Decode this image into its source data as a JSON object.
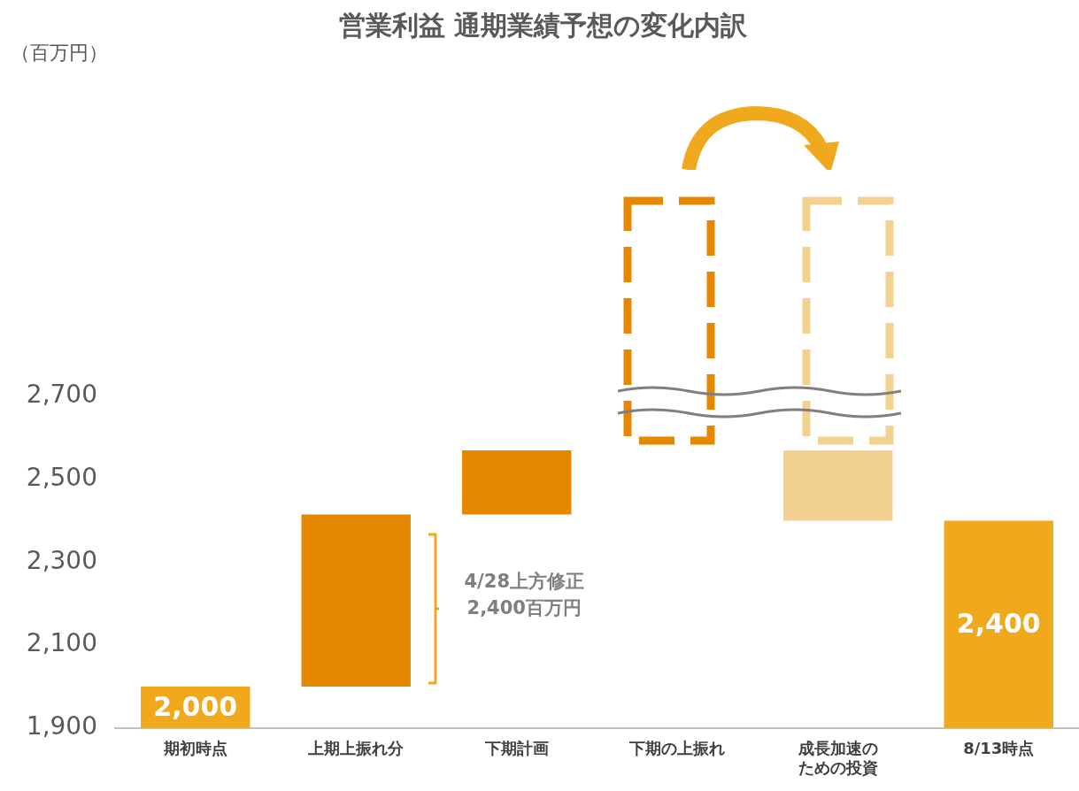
{
  "chart_data": {
    "type": "bar",
    "title": "営業利益 通期業績予想の変化内訳",
    "categories": [
      "期初時点",
      "上期上振れ分",
      "下期計画",
      "下期の上振れ",
      "成長加速のための投資",
      "8/13時点"
    ],
    "values": [
      2000,
      415,
      155,
      null,
      170,
      2400
    ],
    "base": [
      null,
      2000,
      2415,
      null,
      2400,
      null
    ],
    "colors": [
      "#f0a81c",
      "#e58800",
      "#e58800",
      "#e58800",
      "#f3d18f",
      "#f0a81c"
    ],
    "value_labels": [
      "2,000",
      null,
      null,
      null,
      null,
      "2,400"
    ],
    "ylim": [
      1900,
      2700
    ],
    "yticks": [
      {
        "value": 1900,
        "label": "1,900"
      },
      {
        "value": 2100,
        "label": "2,100"
      },
      {
        "value": 2300,
        "label": "2,300"
      },
      {
        "value": 2500,
        "label": "2,500"
      },
      {
        "value": 2700,
        "label": "2,700"
      }
    ],
    "annotations": [
      "（百万円）",
      "4/28上方修正\n2,400百万円"
    ],
    "grid": false,
    "legend": false
  }
}
